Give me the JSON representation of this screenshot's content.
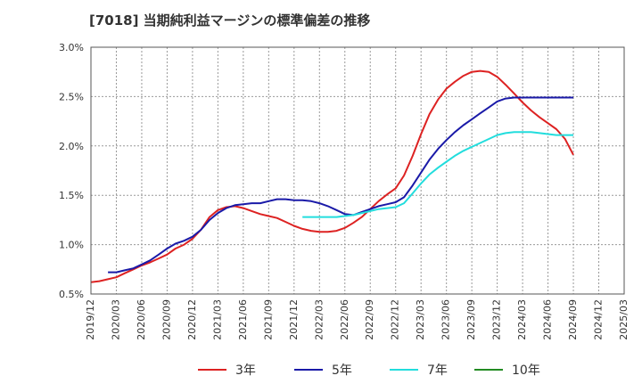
{
  "chart_data": {
    "type": "line",
    "title": "[7018]  当期純利益マージンの標準偏差の推移",
    "xlabel": "",
    "ylabel": "",
    "x": [
      "2019/12",
      "2020/03",
      "2020/06",
      "2020/09",
      "2020/12",
      "2021/03",
      "2021/06",
      "2021/09",
      "2021/12",
      "2022/03",
      "2022/06",
      "2022/09",
      "2022/12",
      "2023/03",
      "2023/06",
      "2023/09",
      "2023/12",
      "2024/03",
      "2024/06",
      "2024/09",
      "2024/12",
      "2025/03"
    ],
    "y_ticks": [
      "0.5%",
      "1.0%",
      "1.5%",
      "2.0%",
      "2.5%",
      "3.0%"
    ],
    "ylim": [
      0.5,
      3.0
    ],
    "grid": true,
    "legend_position": "bottom",
    "series": [
      {
        "name": "3年",
        "color": "#dd2222",
        "points": [
          [
            0,
            0.62
          ],
          [
            0.33,
            0.63
          ],
          [
            0.67,
            0.65
          ],
          [
            1,
            0.67
          ],
          [
            1.33,
            0.71
          ],
          [
            1.67,
            0.75
          ],
          [
            2,
            0.79
          ],
          [
            2.33,
            0.82
          ],
          [
            2.67,
            0.86
          ],
          [
            3,
            0.9
          ],
          [
            3.33,
            0.96
          ],
          [
            3.67,
            1.0
          ],
          [
            4,
            1.06
          ],
          [
            4.33,
            1.15
          ],
          [
            4.67,
            1.28
          ],
          [
            5,
            1.35
          ],
          [
            5.33,
            1.38
          ],
          [
            5.67,
            1.39
          ],
          [
            6,
            1.37
          ],
          [
            6.33,
            1.34
          ],
          [
            6.67,
            1.31
          ],
          [
            7,
            1.29
          ],
          [
            7.33,
            1.27
          ],
          [
            7.67,
            1.23
          ],
          [
            8,
            1.19
          ],
          [
            8.33,
            1.16
          ],
          [
            8.67,
            1.14
          ],
          [
            9,
            1.13
          ],
          [
            9.33,
            1.13
          ],
          [
            9.67,
            1.14
          ],
          [
            10,
            1.17
          ],
          [
            10.33,
            1.22
          ],
          [
            10.67,
            1.28
          ],
          [
            11,
            1.36
          ],
          [
            11.33,
            1.44
          ],
          [
            11.67,
            1.51
          ],
          [
            12,
            1.57
          ],
          [
            12.33,
            1.7
          ],
          [
            12.67,
            1.9
          ],
          [
            13,
            2.12
          ],
          [
            13.33,
            2.32
          ],
          [
            13.67,
            2.47
          ],
          [
            14,
            2.58
          ],
          [
            14.33,
            2.65
          ],
          [
            14.67,
            2.71
          ],
          [
            15,
            2.75
          ],
          [
            15.33,
            2.76
          ],
          [
            15.67,
            2.75
          ],
          [
            16,
            2.7
          ],
          [
            16.33,
            2.62
          ],
          [
            16.67,
            2.53
          ],
          [
            17,
            2.44
          ],
          [
            17.33,
            2.36
          ],
          [
            17.67,
            2.29
          ],
          [
            18,
            2.23
          ],
          [
            18.33,
            2.17
          ],
          [
            18.67,
            2.07
          ],
          [
            19,
            1.91
          ]
        ]
      },
      {
        "name": "5年",
        "color": "#1a1aa8",
        "points": [
          [
            0.67,
            0.72
          ],
          [
            1,
            0.72
          ],
          [
            1.33,
            0.74
          ],
          [
            1.67,
            0.76
          ],
          [
            2,
            0.8
          ],
          [
            2.33,
            0.84
          ],
          [
            2.67,
            0.9
          ],
          [
            3,
            0.96
          ],
          [
            3.33,
            1.01
          ],
          [
            3.67,
            1.04
          ],
          [
            4,
            1.08
          ],
          [
            4.33,
            1.15
          ],
          [
            4.67,
            1.25
          ],
          [
            5,
            1.32
          ],
          [
            5.33,
            1.37
          ],
          [
            5.67,
            1.4
          ],
          [
            6,
            1.41
          ],
          [
            6.33,
            1.42
          ],
          [
            6.67,
            1.42
          ],
          [
            7,
            1.44
          ],
          [
            7.33,
            1.46
          ],
          [
            7.67,
            1.46
          ],
          [
            8,
            1.45
          ],
          [
            8.33,
            1.45
          ],
          [
            8.67,
            1.44
          ],
          [
            9,
            1.42
          ],
          [
            9.33,
            1.39
          ],
          [
            9.67,
            1.35
          ],
          [
            10,
            1.31
          ],
          [
            10.33,
            1.3
          ],
          [
            10.67,
            1.33
          ],
          [
            11,
            1.36
          ],
          [
            11.33,
            1.39
          ],
          [
            11.67,
            1.41
          ],
          [
            12,
            1.43
          ],
          [
            12.33,
            1.48
          ],
          [
            12.67,
            1.6
          ],
          [
            13,
            1.73
          ],
          [
            13.33,
            1.86
          ],
          [
            13.67,
            1.97
          ],
          [
            14,
            2.06
          ],
          [
            14.33,
            2.14
          ],
          [
            14.67,
            2.21
          ],
          [
            15,
            2.27
          ],
          [
            15.33,
            2.33
          ],
          [
            15.67,
            2.39
          ],
          [
            16,
            2.45
          ],
          [
            16.33,
            2.48
          ],
          [
            16.67,
            2.49
          ],
          [
            17,
            2.49
          ],
          [
            17.33,
            2.49
          ],
          [
            17.67,
            2.49
          ],
          [
            18,
            2.49
          ],
          [
            18.33,
            2.49
          ],
          [
            18.67,
            2.49
          ],
          [
            19,
            2.49
          ]
        ]
      },
      {
        "name": "7年",
        "color": "#22dddd",
        "points": [
          [
            8.33,
            1.28
          ],
          [
            8.67,
            1.28
          ],
          [
            9,
            1.28
          ],
          [
            9.33,
            1.28
          ],
          [
            9.67,
            1.28
          ],
          [
            10,
            1.29
          ],
          [
            10.33,
            1.3
          ],
          [
            10.67,
            1.32
          ],
          [
            11,
            1.34
          ],
          [
            11.33,
            1.36
          ],
          [
            11.67,
            1.37
          ],
          [
            12,
            1.38
          ],
          [
            12.33,
            1.42
          ],
          [
            12.67,
            1.52
          ],
          [
            13,
            1.62
          ],
          [
            13.33,
            1.71
          ],
          [
            13.67,
            1.78
          ],
          [
            14,
            1.84
          ],
          [
            14.33,
            1.9
          ],
          [
            14.67,
            1.95
          ],
          [
            15,
            1.99
          ],
          [
            15.33,
            2.03
          ],
          [
            15.67,
            2.07
          ],
          [
            16,
            2.11
          ],
          [
            16.33,
            2.13
          ],
          [
            16.67,
            2.14
          ],
          [
            17,
            2.14
          ],
          [
            17.33,
            2.14
          ],
          [
            17.67,
            2.13
          ],
          [
            18,
            2.12
          ],
          [
            18.33,
            2.11
          ],
          [
            18.67,
            2.11
          ],
          [
            19,
            2.11
          ]
        ]
      },
      {
        "name": "10年",
        "color": "#228b22",
        "points": []
      }
    ]
  }
}
